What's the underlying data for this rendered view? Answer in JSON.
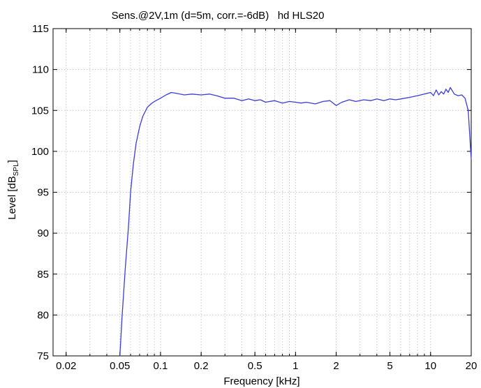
{
  "chart_data": {
    "type": "line",
    "title": "Sens.@2V,1m (d=5m, corr.=-6dB)   hd HLS20",
    "xlabel": "Frequency [kHz]",
    "ylabel_main": "Level [dB",
    "ylabel_sub": "SPL",
    "ylabel_end": "]",
    "x_scale": "log",
    "xlim": [
      0.016,
      20
    ],
    "ylim": [
      75,
      115
    ],
    "grid": true,
    "legend": "none",
    "line_color": "#3b3bdc",
    "x_major_ticks": [
      0.02,
      0.05,
      0.1,
      0.2,
      0.5,
      1,
      2,
      5,
      10,
      20
    ],
    "x_tick_labels": [
      "0.02",
      "0.05",
      "0.1",
      "0.2",
      "0.5",
      "1",
      "2",
      "5",
      "10",
      "20"
    ],
    "y_ticks": [
      75,
      80,
      85,
      90,
      95,
      100,
      105,
      110,
      115
    ],
    "y_tick_labels": [
      "75",
      "80",
      "85",
      "90",
      "95",
      "100",
      "105",
      "110",
      "115"
    ],
    "series": [
      {
        "x": [
          0.05,
          0.052,
          0.055,
          0.058,
          0.06,
          0.063,
          0.066,
          0.07,
          0.074,
          0.08,
          0.085,
          0.09,
          0.1,
          0.11,
          0.12,
          0.13,
          0.15,
          0.17,
          0.2,
          0.23,
          0.26,
          0.3,
          0.35,
          0.4,
          0.45,
          0.5,
          0.55,
          0.6,
          0.7,
          0.8,
          0.9,
          1.0,
          1.1,
          1.2,
          1.4,
          1.6,
          1.8,
          2.0,
          2.2,
          2.5,
          2.8,
          3.2,
          3.6,
          4.0,
          4.5,
          5.0,
          5.5,
          6.0,
          7.0,
          8.0,
          9.0,
          10.0,
          10.5,
          11.0,
          11.5,
          12.0,
          12.5,
          13.0,
          13.5,
          14.0,
          15.0,
          16.0,
          17.0,
          18.0,
          19.0,
          20.0
        ],
        "y": [
          75,
          80,
          86,
          91,
          95,
          98.5,
          101,
          103,
          104.3,
          105.4,
          105.8,
          106.1,
          106.5,
          106.9,
          107.2,
          107.1,
          106.9,
          107.0,
          106.9,
          107.0,
          106.8,
          106.5,
          106.5,
          106.2,
          106.4,
          106.2,
          106.3,
          106.0,
          106.2,
          105.9,
          106.1,
          106.0,
          105.9,
          106.0,
          105.8,
          106.1,
          106.2,
          105.6,
          106.0,
          106.3,
          106.1,
          106.3,
          106.2,
          106.4,
          106.2,
          106.4,
          106.3,
          106.4,
          106.6,
          106.8,
          107.0,
          107.2,
          106.8,
          107.5,
          106.9,
          107.3,
          107.0,
          107.6,
          107.2,
          107.8,
          107.0,
          106.8,
          106.9,
          106.5,
          105.0,
          99.0
        ]
      }
    ]
  }
}
